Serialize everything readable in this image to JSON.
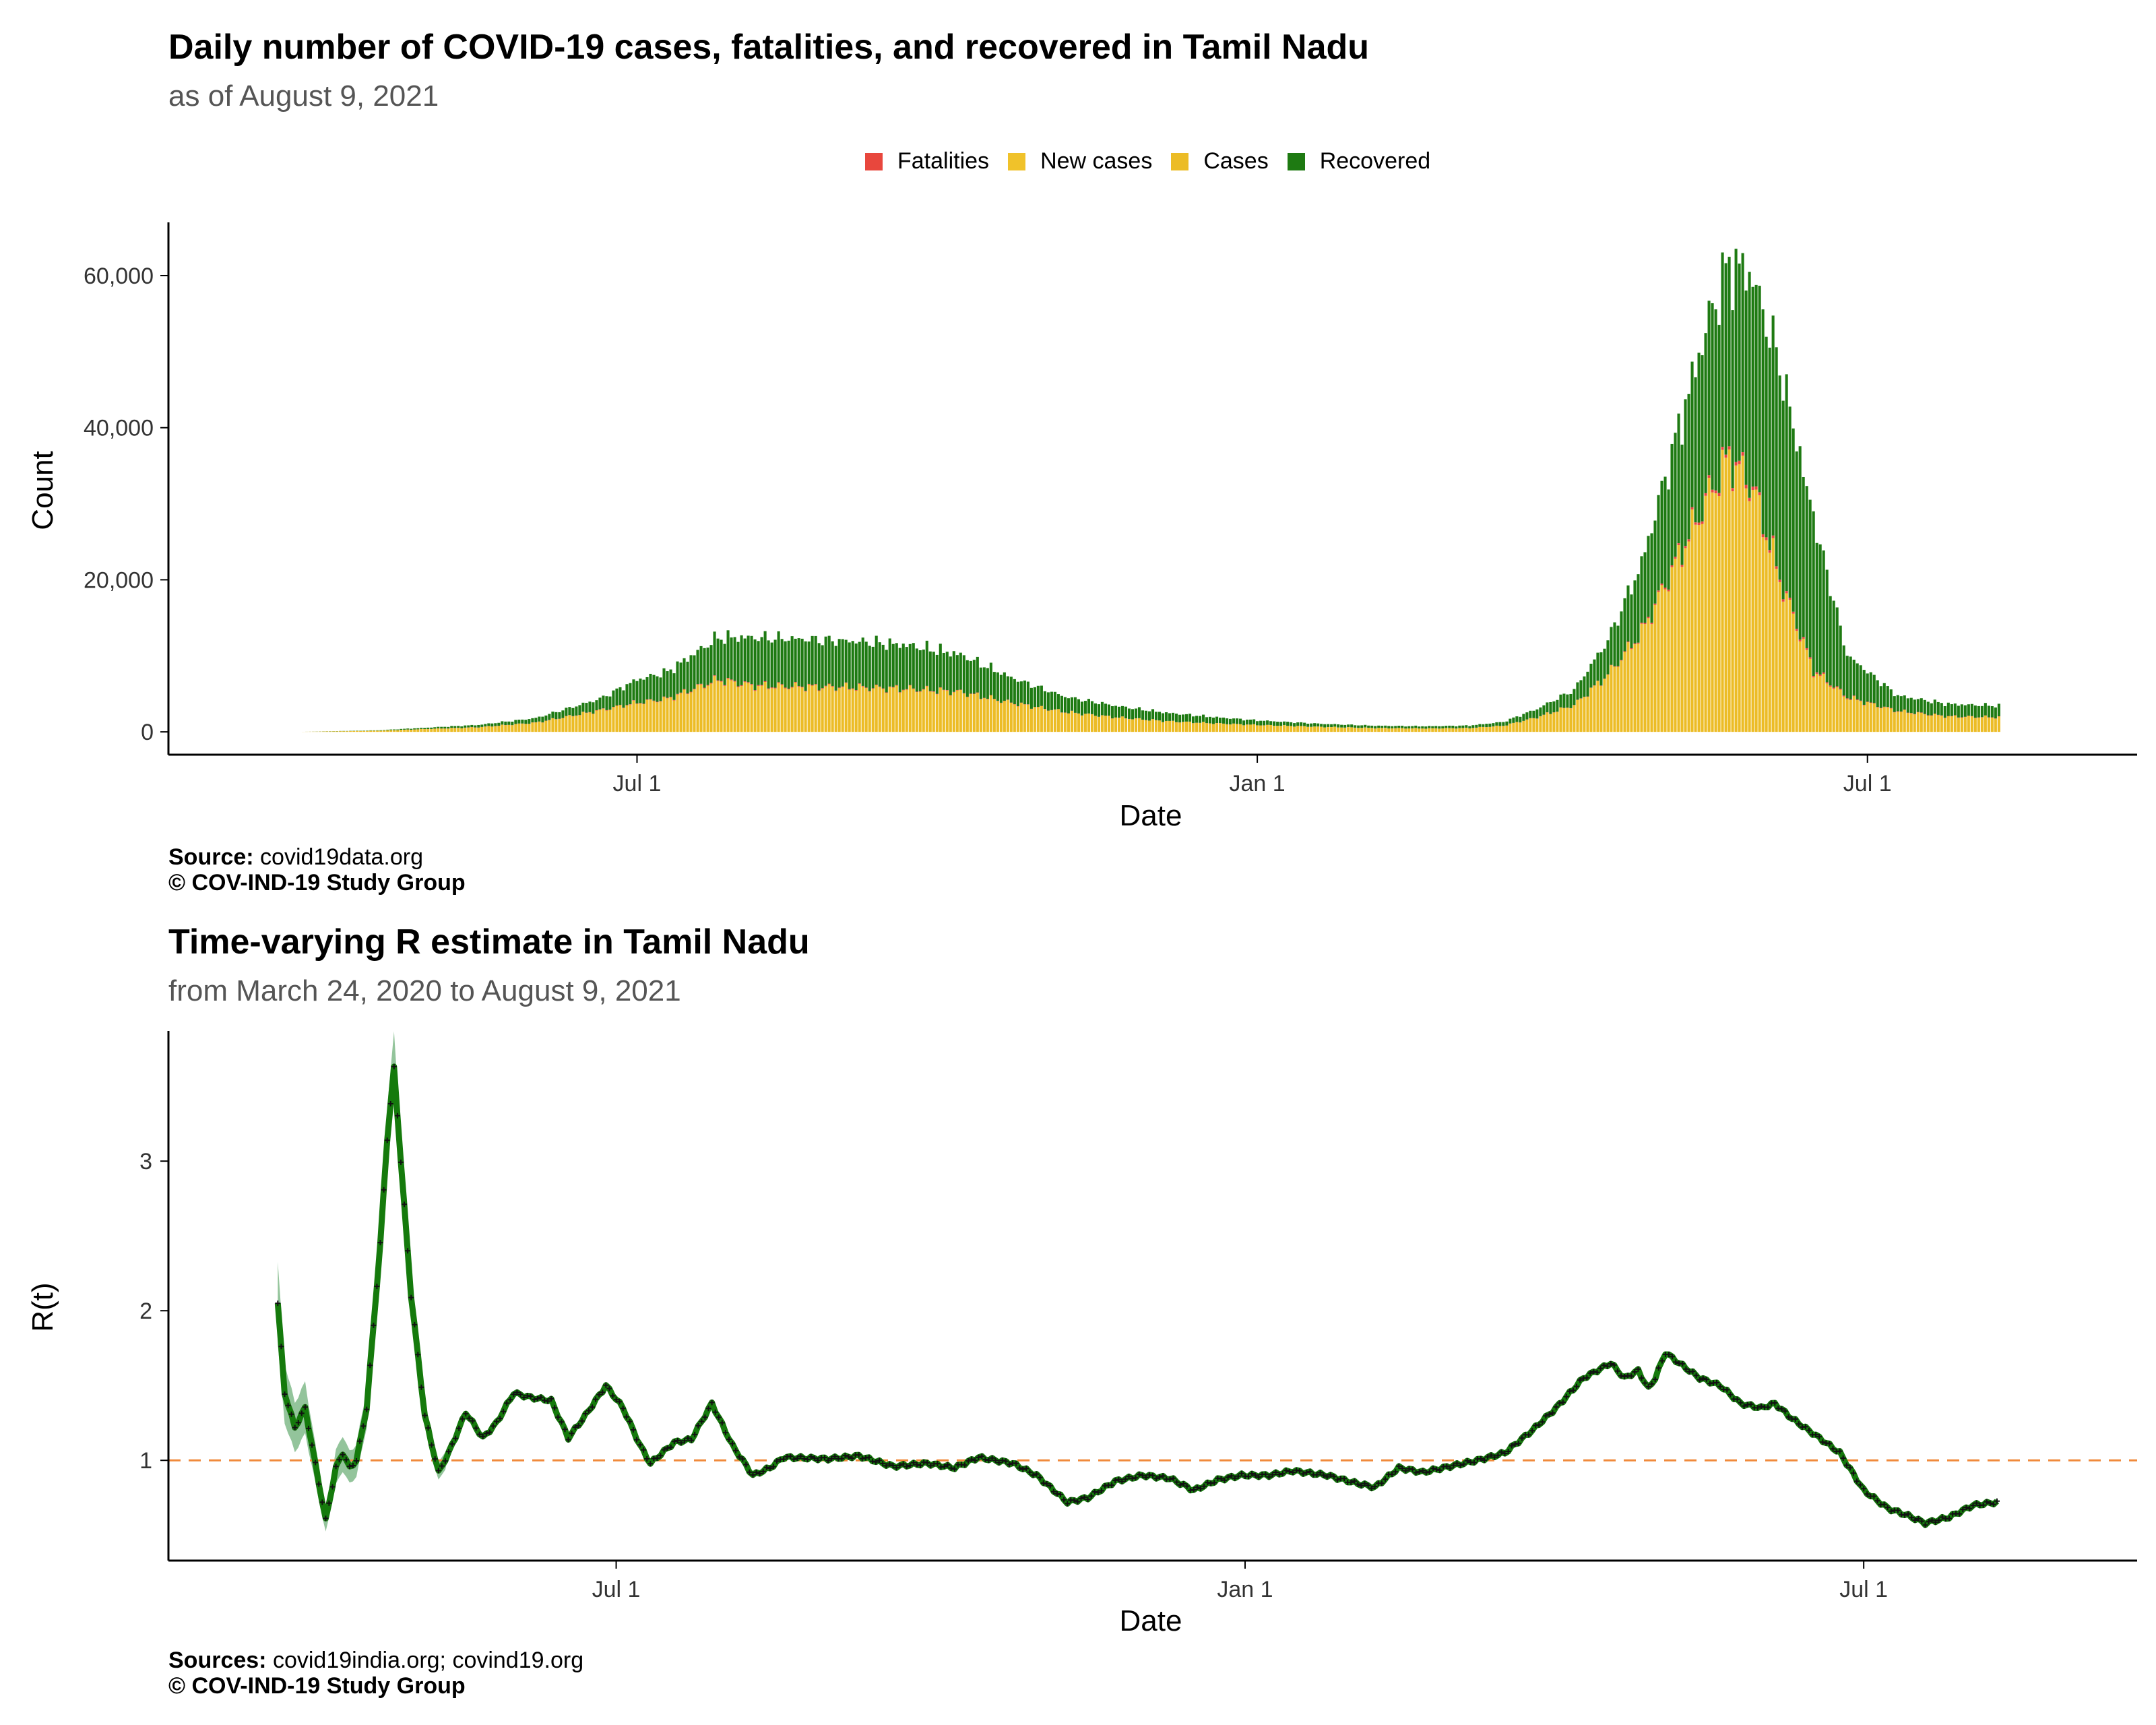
{
  "colors": {
    "fatalities": "#e8473d",
    "new_cases": "#f0c22a",
    "cases": "#ecbc26",
    "recovered": "#1e7a12",
    "r_line": "#157a0c",
    "r_band": "#6fb07a",
    "r_marks": "#111111",
    "threshold": "#f08a3c",
    "axis": "#000000",
    "tick_text": "#333333"
  },
  "top_panel": {
    "title": "Daily number of COVID-19 cases, fatalities, and recovered in Tamil Nadu",
    "subtitle": "as of August  9, 2021",
    "legend": [
      {
        "label": "Fatalities",
        "color_key": "fatalities"
      },
      {
        "label": "New cases",
        "color_key": "new_cases"
      },
      {
        "label": "Cases",
        "color_key": "cases"
      },
      {
        "label": "Recovered",
        "color_key": "recovered"
      }
    ],
    "source_label": "Source:",
    "source_text": " covid19data.org",
    "copyright": "© COV-IND-19 Study Group"
  },
  "bottom_panel": {
    "title": "Time-varying R estimate in Tamil Nadu",
    "subtitle": "from March 24, 2020 to August  9, 2021",
    "source_label": "Sources:",
    "source_text": " covid19india.org; covind19.org",
    "copyright": "© COV-IND-19 Study Group"
  },
  "chart_data": [
    {
      "type": "bar",
      "stacked": true,
      "title": "Daily number of COVID-19 cases, fatalities, and recovered in Tamil Nadu",
      "subtitle": "as of August  9, 2021",
      "xlabel": "Date",
      "ylabel": "Count",
      "ylim": [
        -3000,
        67000
      ],
      "yticks": [
        0,
        20000,
        40000,
        60000
      ],
      "ytick_labels": [
        "0",
        "20,000",
        "40,000",
        "60,000"
      ],
      "x_start": "2020-03-24",
      "x_end": "2021-08-09",
      "x_domain": [
        "2020-02-13",
        "2021-09-19"
      ],
      "xticks": [
        "2020-07-01",
        "2021-01-01",
        "2021-07-01"
      ],
      "xtick_labels": [
        "Jul 1",
        "Jan 1",
        "Jul 1"
      ],
      "legend_position": "top",
      "series": [
        {
          "name": "Cases",
          "color_key": "cases",
          "keypoints": [
            [
              "2020-03-24",
              10
            ],
            [
              "2020-04-15",
              150
            ],
            [
              "2020-05-15",
              600
            ],
            [
              "2020-06-01",
              1200
            ],
            [
              "2020-06-20",
              2800
            ],
            [
              "2020-07-01",
              3800
            ],
            [
              "2020-07-10",
              4300
            ],
            [
              "2020-07-25",
              6800
            ],
            [
              "2020-08-05",
              6000
            ],
            [
              "2020-08-20",
              5900
            ],
            [
              "2020-09-05",
              5800
            ],
            [
              "2020-09-20",
              5600
            ],
            [
              "2020-10-05",
              5200
            ],
            [
              "2020-10-20",
              3800
            ],
            [
              "2020-11-05",
              2600
            ],
            [
              "2020-11-20",
              1900
            ],
            [
              "2020-12-05",
              1400
            ],
            [
              "2020-12-20",
              1100
            ],
            [
              "2021-01-01",
              900
            ],
            [
              "2021-01-20",
              650
            ],
            [
              "2021-02-05",
              500
            ],
            [
              "2021-02-20",
              450
            ],
            [
              "2021-03-05",
              500
            ],
            [
              "2021-03-15",
              800
            ],
            [
              "2021-03-25",
              1900
            ],
            [
              "2021-04-05",
              3500
            ],
            [
              "2021-04-15",
              7500
            ],
            [
              "2021-04-25",
              13000
            ],
            [
              "2021-05-05",
              22000
            ],
            [
              "2021-05-15",
              31000
            ],
            [
              "2021-05-21",
              36000
            ],
            [
              "2021-05-28",
              32000
            ],
            [
              "2021-06-05",
              20000
            ],
            [
              "2021-06-15",
              8000
            ],
            [
              "2021-06-25",
              4500
            ],
            [
              "2021-07-10",
              2700
            ],
            [
              "2021-07-25",
              2000
            ],
            [
              "2021-08-09",
              1900
            ]
          ]
        },
        {
          "name": "Fatalities",
          "color_key": "fatalities",
          "keypoints": [
            [
              "2020-03-24",
              0
            ],
            [
              "2020-06-01",
              20
            ],
            [
              "2020-07-10",
              70
            ],
            [
              "2020-08-01",
              110
            ],
            [
              "2020-09-01",
              80
            ],
            [
              "2020-10-01",
              60
            ],
            [
              "2020-11-01",
              25
            ],
            [
              "2020-12-01",
              12
            ],
            [
              "2021-01-15",
              8
            ],
            [
              "2021-03-15",
              10
            ],
            [
              "2021-04-15",
              40
            ],
            [
              "2021-05-10",
              300
            ],
            [
              "2021-05-25",
              470
            ],
            [
              "2021-06-10",
              250
            ],
            [
              "2021-07-01",
              60
            ],
            [
              "2021-08-09",
              30
            ]
          ]
        },
        {
          "name": "Recovered",
          "color_key": "recovered",
          "keypoints": [
            [
              "2020-03-24",
              0
            ],
            [
              "2020-04-15",
              50
            ],
            [
              "2020-05-15",
              300
            ],
            [
              "2020-06-01",
              600
            ],
            [
              "2020-06-20",
              1500
            ],
            [
              "2020-07-01",
              3000
            ],
            [
              "2020-07-10",
              3500
            ],
            [
              "2020-07-25",
              5500
            ],
            [
              "2020-08-05",
              6300
            ],
            [
              "2020-08-20",
              6200
            ],
            [
              "2020-09-05",
              6000
            ],
            [
              "2020-09-20",
              5700
            ],
            [
              "2020-10-05",
              4900
            ],
            [
              "2020-10-20",
              3300
            ],
            [
              "2020-11-05",
              2000
            ],
            [
              "2020-11-20",
              1500
            ],
            [
              "2020-12-05",
              1100
            ],
            [
              "2020-12-20",
              800
            ],
            [
              "2021-01-01",
              600
            ],
            [
              "2021-01-20",
              400
            ],
            [
              "2021-02-05",
              300
            ],
            [
              "2021-02-20",
              280
            ],
            [
              "2021-03-05",
              320
            ],
            [
              "2021-03-15",
              500
            ],
            [
              "2021-03-25",
              1100
            ],
            [
              "2021-04-05",
              2000
            ],
            [
              "2021-04-15",
              4500
            ],
            [
              "2021-04-25",
              9000
            ],
            [
              "2021-05-05",
              16000
            ],
            [
              "2021-05-15",
              23000
            ],
            [
              "2021-05-21",
              25000
            ],
            [
              "2021-05-26",
              27000
            ],
            [
              "2021-06-05",
              28000
            ],
            [
              "2021-06-15",
              20000
            ],
            [
              "2021-06-25",
              5500
            ],
            [
              "2021-07-10",
              2000
            ],
            [
              "2021-07-25",
              1600
            ],
            [
              "2021-08-09",
              1500
            ]
          ]
        }
      ],
      "top_total_keypoints": [
        [
          "2020-07-15",
          15000
        ],
        [
          "2021-05-24",
          64000
        ]
      ]
    },
    {
      "type": "line",
      "title": "Time-varying R estimate in Tamil Nadu",
      "subtitle": "from March 24, 2020 to August  9, 2021",
      "xlabel": "Date",
      "ylabel": "R(t)",
      "ylim": [
        0.33,
        3.87
      ],
      "yticks": [
        1,
        2,
        3
      ],
      "ytick_labels": [
        "1",
        "2",
        "3"
      ],
      "x_start": "2020-03-24",
      "x_end": "2021-08-09",
      "x_domain": [
        "2020-02-21",
        "2021-09-19"
      ],
      "xticks": [
        "2020-07-01",
        "2021-01-01",
        "2021-07-01"
      ],
      "xtick_labels": [
        "Jul 1",
        "Jan 1",
        "Jul 1"
      ],
      "reference_line": 1,
      "series": [
        {
          "name": "",
          "color_key": "r_line",
          "keypoints": [
            [
              "2020-03-24",
              2.05
            ],
            [
              "2020-03-26",
              1.45
            ],
            [
              "2020-03-29",
              1.22
            ],
            [
              "2020-04-01",
              1.35
            ],
            [
              "2020-04-05",
              0.85
            ],
            [
              "2020-04-07",
              0.6
            ],
            [
              "2020-04-10",
              0.95
            ],
            [
              "2020-04-12",
              1.05
            ],
            [
              "2020-04-14",
              0.95
            ],
            [
              "2020-04-16",
              1.0
            ],
            [
              "2020-04-19",
              1.35
            ],
            [
              "2020-04-23",
              2.45
            ],
            [
              "2020-04-25",
              3.15
            ],
            [
              "2020-04-27",
              3.62
            ],
            [
              "2020-04-29",
              3.0
            ],
            [
              "2020-05-02",
              2.1
            ],
            [
              "2020-05-06",
              1.3
            ],
            [
              "2020-05-10",
              0.92
            ],
            [
              "2020-05-13",
              1.05
            ],
            [
              "2020-05-18",
              1.32
            ],
            [
              "2020-05-23",
              1.15
            ],
            [
              "2020-05-27",
              1.25
            ],
            [
              "2020-06-01",
              1.45
            ],
            [
              "2020-06-06",
              1.42
            ],
            [
              "2020-06-12",
              1.4
            ],
            [
              "2020-06-17",
              1.15
            ],
            [
              "2020-06-22",
              1.3
            ],
            [
              "2020-06-28",
              1.5
            ],
            [
              "2020-07-03",
              1.35
            ],
            [
              "2020-07-08",
              1.1
            ],
            [
              "2020-07-11",
              0.98
            ],
            [
              "2020-07-18",
              1.12
            ],
            [
              "2020-07-23",
              1.14
            ],
            [
              "2020-07-29",
              1.38
            ],
            [
              "2020-08-04",
              1.1
            ],
            [
              "2020-08-10",
              0.9
            ],
            [
              "2020-08-15",
              0.95
            ],
            [
              "2020-08-19",
              1.02
            ],
            [
              "2020-09-01",
              1.01
            ],
            [
              "2020-09-10",
              1.03
            ],
            [
              "2020-09-20",
              0.96
            ],
            [
              "2020-09-30",
              0.98
            ],
            [
              "2020-10-08",
              0.95
            ],
            [
              "2020-10-15",
              1.02
            ],
            [
              "2020-10-25",
              0.98
            ],
            [
              "2020-11-01",
              0.9
            ],
            [
              "2020-11-10",
              0.72
            ],
            [
              "2020-11-16",
              0.75
            ],
            [
              "2020-11-24",
              0.86
            ],
            [
              "2020-12-02",
              0.9
            ],
            [
              "2020-12-10",
              0.88
            ],
            [
              "2020-12-17",
              0.8
            ],
            [
              "2020-12-24",
              0.87
            ],
            [
              "2020-12-31",
              0.9
            ],
            [
              "2021-01-08",
              0.9
            ],
            [
              "2021-01-15",
              0.93
            ],
            [
              "2021-01-25",
              0.9
            ],
            [
              "2021-02-02",
              0.85
            ],
            [
              "2021-02-08",
              0.82
            ],
            [
              "2021-02-15",
              0.95
            ],
            [
              "2021-02-22",
              0.92
            ],
            [
              "2021-03-02",
              0.96
            ],
            [
              "2021-03-10",
              1.0
            ],
            [
              "2021-03-18",
              1.05
            ],
            [
              "2021-03-26",
              1.2
            ],
            [
              "2021-04-02",
              1.35
            ],
            [
              "2021-04-10",
              1.55
            ],
            [
              "2021-04-18",
              1.65
            ],
            [
              "2021-04-22",
              1.55
            ],
            [
              "2021-04-26",
              1.6
            ],
            [
              "2021-04-29",
              1.48
            ],
            [
              "2021-05-01",
              1.55
            ],
            [
              "2021-05-04",
              1.72
            ],
            [
              "2021-05-08",
              1.65
            ],
            [
              "2021-05-14",
              1.55
            ],
            [
              "2021-05-20",
              1.5
            ],
            [
              "2021-05-26",
              1.38
            ],
            [
              "2021-06-01",
              1.35
            ],
            [
              "2021-06-05",
              1.38
            ],
            [
              "2021-06-10",
              1.28
            ],
            [
              "2021-06-18",
              1.15
            ],
            [
              "2021-06-24",
              1.05
            ],
            [
              "2021-07-01",
              0.8
            ],
            [
              "2021-07-08",
              0.68
            ],
            [
              "2021-07-14",
              0.63
            ],
            [
              "2021-07-19",
              0.58
            ],
            [
              "2021-07-26",
              0.62
            ],
            [
              "2021-08-02",
              0.7
            ],
            [
              "2021-08-09",
              0.72
            ]
          ]
        }
      ]
    }
  ]
}
